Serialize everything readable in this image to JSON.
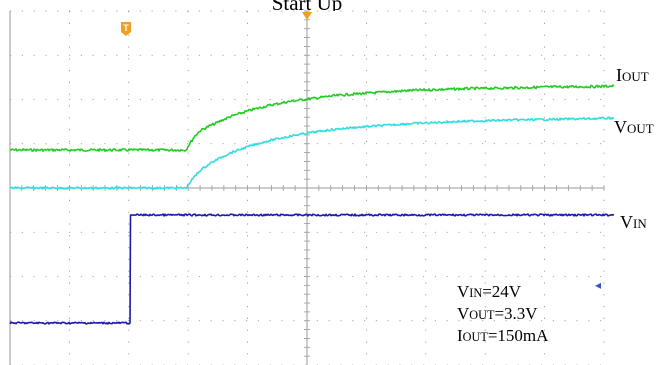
{
  "chart_data": {
    "type": "line",
    "title": "Start Up",
    "grid": true,
    "x": [
      0,
      30,
      60,
      90,
      120,
      126,
      150,
      176,
      178,
      181,
      185,
      190,
      195,
      200,
      205,
      210,
      220,
      240,
      260,
      280,
      300,
      320,
      340,
      360,
      380,
      400,
      420,
      440,
      460,
      500,
      540,
      580,
      604
    ],
    "series": [
      {
        "name": "IOUT",
        "color": "#22cc22",
        "values": [
          0.0,
          0.0,
          0.0,
          0.0,
          0.0,
          0.0,
          0.0,
          0.0,
          0.06,
          0.13,
          0.22,
          0.3,
          0.34,
          0.38,
          0.41,
          0.45,
          0.52,
          0.62,
          0.7,
          0.76,
          0.8,
          0.84,
          0.87,
          0.89,
          0.91,
          0.93,
          0.94,
          0.95,
          0.96,
          0.97,
          0.985,
          0.99,
          1.0
        ]
      },
      {
        "name": "VOUT",
        "color": "#33dddd",
        "values": [
          0.0,
          0.0,
          0.0,
          0.0,
          0.0,
          0.0,
          0.0,
          0.0,
          0.04,
          0.1,
          0.17,
          0.25,
          0.3,
          0.35,
          0.39,
          0.43,
          0.5,
          0.6,
          0.68,
          0.74,
          0.79,
          0.83,
          0.86,
          0.88,
          0.9,
          0.92,
          0.93,
          0.945,
          0.955,
          0.97,
          0.98,
          0.99,
          1.0
        ]
      },
      {
        "name": "VIN",
        "color": "#1a1aaa",
        "values": [
          0,
          0,
          0,
          0,
          0,
          1,
          1,
          1,
          1,
          1,
          1,
          1,
          1,
          1,
          1,
          1,
          1,
          1,
          1,
          1,
          1,
          1,
          1,
          1,
          1,
          1,
          1,
          1,
          1,
          1,
          1,
          1,
          1
        ]
      }
    ],
    "labels": [
      {
        "main": "I",
        "sub": "OUT"
      },
      {
        "main": "V",
        "sub": "OUT"
      },
      {
        "main": "V",
        "sub": "IN"
      }
    ],
    "annotations": [
      {
        "main": "V",
        "sub": "IN",
        "value": "=24V"
      },
      {
        "main": "V",
        "sub": "OUT",
        "value": "=3.3V"
      },
      {
        "main": "I",
        "sub": "OUT",
        "value": "=150mA"
      }
    ],
    "markers": {
      "trigger_symbol": "T",
      "trigger_color": "#f0a020",
      "cursor_color": "#f0a020",
      "level_arrow_color": "#3355cc",
      "level_arrow_glyph": "◂"
    }
  }
}
